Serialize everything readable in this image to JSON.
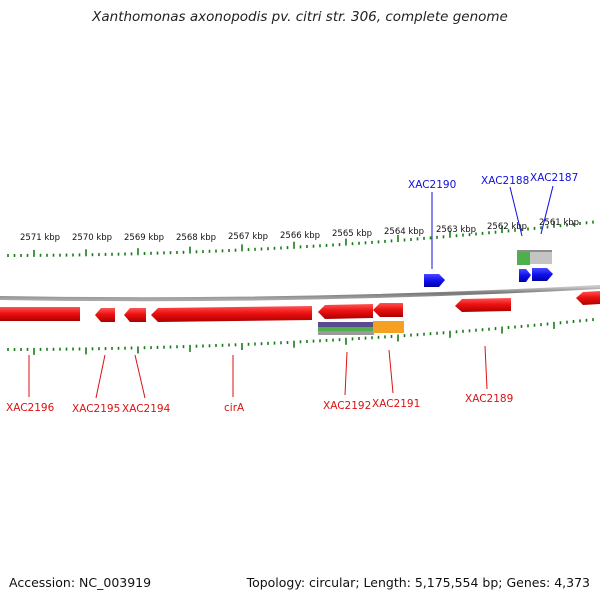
{
  "title": "Xanthomonas axonopodis pv. citri str. 306, complete genome",
  "footer": {
    "accession_label": "Accession:",
    "accession": "NC_003919",
    "topology_label": "Topology:",
    "topology": "circular;",
    "length_label": "Length:",
    "length": "5,175,554 bp;",
    "genes_label": "Genes:",
    "genes": "4,373"
  },
  "colors": {
    "backbone": "#8a8a8a",
    "forward_gene": "#1010ee",
    "reverse_gene": "#ee1111",
    "tick": "#1a7a1a",
    "forward_label": "#1010dd",
    "reverse_label": "#dd1111"
  },
  "ticks": [
    "2571 kbp",
    "2570 kbp",
    "2569 kbp",
    "2568 kbp",
    "2567 kbp",
    "2566 kbp",
    "2565 kbp",
    "2564 kbp",
    "2563 kbp",
    "2562 kbp",
    "2561 kbp"
  ],
  "genes_forward": [
    {
      "name": "XAC2190",
      "labeled": true
    },
    {
      "name": "XAC2188",
      "labeled": true
    },
    {
      "name": "XAC2187",
      "labeled": true
    }
  ],
  "genes_reverse": [
    {
      "name": "XAC2196"
    },
    {
      "name": "XAC2195"
    },
    {
      "name": "XAC2194"
    },
    {
      "name": "cirA"
    },
    {
      "name": "XAC2192"
    },
    {
      "name": "XAC2191"
    },
    {
      "name": "XAC2189"
    }
  ]
}
